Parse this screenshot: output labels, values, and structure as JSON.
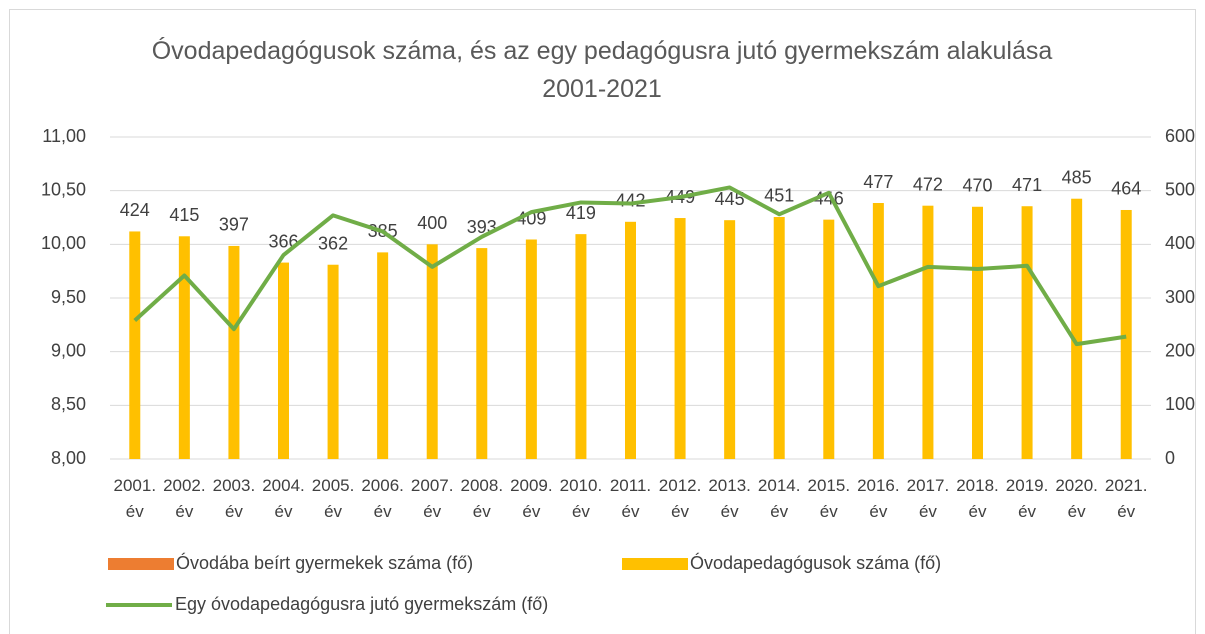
{
  "chart_data": {
    "type": "bar_line",
    "title": "Óvodapedagógusok száma, és az egy pedagógusra jutó gyermekszám alakulása 2001-2021",
    "categories": [
      "2001. év",
      "2002. év",
      "2003. év",
      "2004. év",
      "2005. év",
      "2006. év",
      "2007. év",
      "2008. év",
      "2009. év",
      "2010. év",
      "2011. év",
      "2012. év",
      "2013. év",
      "2014. év",
      "2015. év",
      "2016. év",
      "2017. év",
      "2018. év",
      "2019. év",
      "2020. év",
      "2021. év"
    ],
    "series": [
      {
        "name": "Óvodába beírt gyermekek száma (fő)",
        "type": "bar",
        "color": "#ed7d31",
        "axis": "y2",
        "values": [
          null,
          null,
          null,
          null,
          null,
          null,
          null,
          null,
          null,
          null,
          null,
          null,
          null,
          null,
          null,
          null,
          null,
          null,
          null,
          null,
          null
        ]
      },
      {
        "name": "Óvodapedagógusok száma (fő)",
        "type": "bar",
        "color": "#ffc000",
        "axis": "y2",
        "values": [
          424,
          415,
          397,
          366,
          362,
          385,
          400,
          393,
          409,
          419,
          442,
          449,
          445,
          451,
          446,
          477,
          472,
          470,
          471,
          485,
          464
        ]
      },
      {
        "name": "Egy óvodapedagógusra jutó gyermekszám (fő)",
        "type": "line",
        "color": "#70ad47",
        "axis": "y",
        "values": [
          9.29,
          9.71,
          9.21,
          9.9,
          10.27,
          10.12,
          9.79,
          10.07,
          10.3,
          10.39,
          10.38,
          10.44,
          10.53,
          10.28,
          10.48,
          9.61,
          9.79,
          9.77,
          9.8,
          9.07,
          9.14
        ]
      }
    ],
    "ylim": [
      8,
      11
    ],
    "yticks": [
      {
        "value": 8,
        "label": "8,00"
      },
      {
        "value": 8.5,
        "label": "8,50"
      },
      {
        "value": 9,
        "label": "9,00"
      },
      {
        "value": 9.5,
        "label": "9,50"
      },
      {
        "value": 10,
        "label": "10,00"
      },
      {
        "value": 10.5,
        "label": "10,50"
      },
      {
        "value": 11,
        "label": "11,00"
      }
    ],
    "y2lim": [
      0,
      600
    ],
    "y2ticks": [
      0,
      100,
      200,
      300,
      400,
      500,
      600
    ],
    "grid": true
  }
}
